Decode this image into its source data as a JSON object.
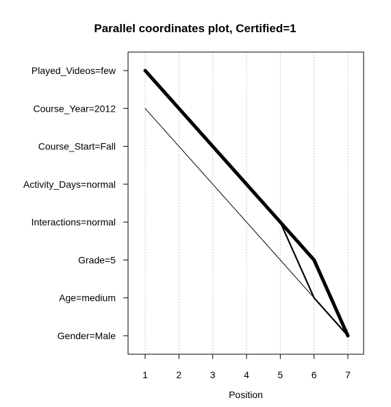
{
  "chart_data": {
    "type": "line",
    "title": "Parallel coordinates plot, Certified=1",
    "xlabel": "Position",
    "ylabel": "",
    "x_ticks": [
      "1",
      "2",
      "3",
      "4",
      "5",
      "6",
      "7"
    ],
    "xlim": [
      1,
      7
    ],
    "y_categories": [
      "Played_Videos=few",
      "Course_Year=2012",
      "Course_Start=Fall",
      "Activity_Days=normal",
      "Interactions=normal",
      "Grade=5",
      "Age=medium",
      "Gender=Male"
    ],
    "grid": "vertical dotted at each position",
    "series": [
      {
        "points": [
          {
            "x": 1,
            "y": "Played_Videos=few"
          },
          {
            "x": 5,
            "y": "Interactions=normal"
          },
          {
            "x": 6,
            "y": "Grade=5"
          },
          {
            "x": 7,
            "y": "Gender=Male"
          }
        ],
        "weight": "heavy"
      },
      {
        "points": [
          {
            "x": 5,
            "y": "Interactions=normal"
          },
          {
            "x": 6,
            "y": "Age=medium"
          },
          {
            "x": 7,
            "y": "Gender=Male"
          }
        ],
        "weight": "medium"
      },
      {
        "points": [
          {
            "x": 1,
            "y": "Course_Year=2012"
          },
          {
            "x": 6,
            "y": "Age=medium"
          },
          {
            "x": 7,
            "y": "Gender=Male"
          }
        ],
        "weight": "thin"
      }
    ]
  }
}
